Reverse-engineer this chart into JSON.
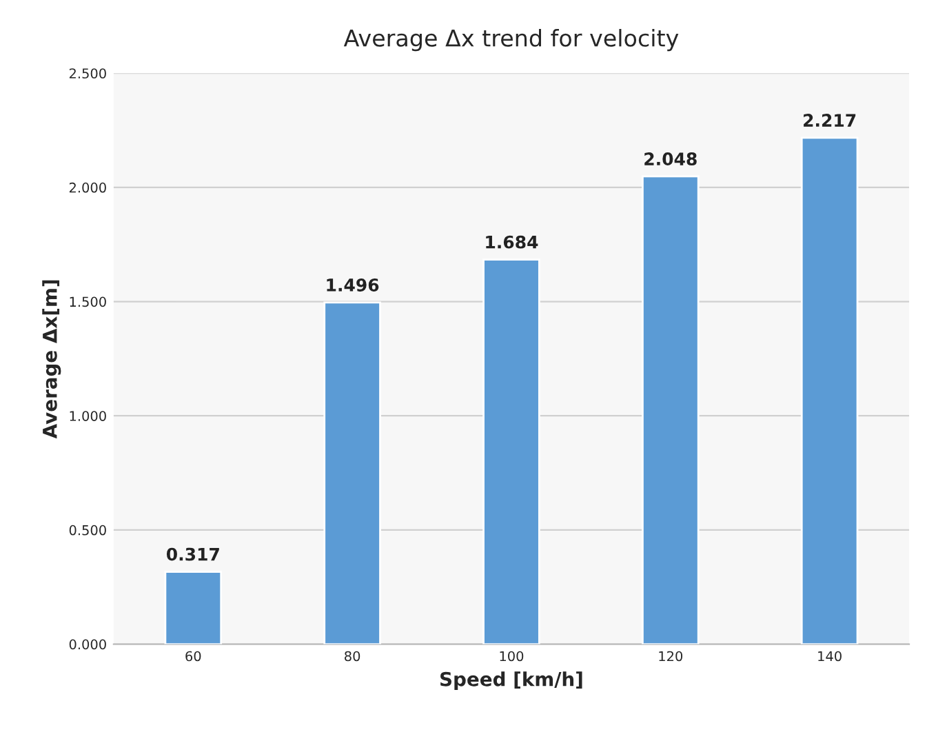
{
  "chart_data": {
    "type": "bar",
    "title": "Average Δx trend for velocity",
    "xlabel": "Speed [km/h]",
    "ylabel": "Average Δx[m]",
    "categories": [
      "60",
      "80",
      "100",
      "120",
      "140"
    ],
    "series": [
      {
        "color": "#5b9bd5",
        "values": [
          0.317,
          1.496,
          1.684,
          2.048,
          2.217
        ]
      }
    ],
    "ylim": [
      0,
      2.5
    ],
    "yticks": [
      {
        "value": 0,
        "label": "0.000"
      },
      {
        "value": 0.5,
        "label": "0.500"
      },
      {
        "value": 1.0,
        "label": "1.000"
      },
      {
        "value": 1.5,
        "label": "1.500"
      },
      {
        "value": 2.0,
        "label": "2.000"
      },
      {
        "value": 2.5,
        "label": "2.500"
      }
    ],
    "grid": "y",
    "data_labels": true
  }
}
